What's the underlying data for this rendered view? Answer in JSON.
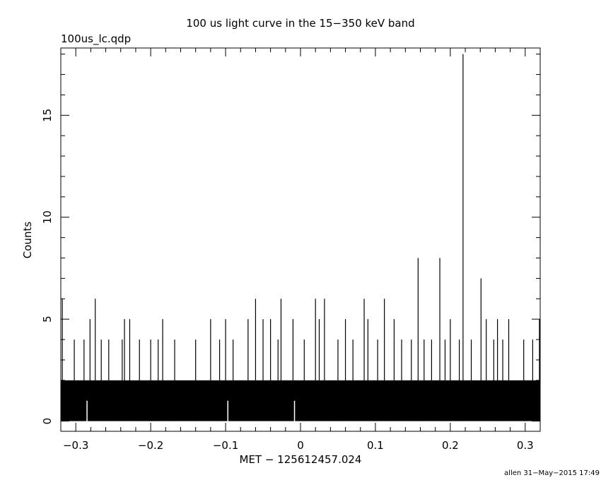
{
  "chart_data": {
    "type": "bar",
    "title": "100 us light curve in the 15−350 keV band",
    "file_label": "100us_lc.qdp",
    "xlabel": "MET − 125612457.024",
    "ylabel": "Counts",
    "footer": "allen 31−May−2015 17:49",
    "xlim": [
      -0.32,
      0.32
    ],
    "ylim": [
      -0.5,
      18.3
    ],
    "bin_width": 0.0001,
    "x_ticks": [
      {
        "value": -0.3,
        "label": "−0.3"
      },
      {
        "value": -0.2,
        "label": "−0.2"
      },
      {
        "value": -0.1,
        "label": "−0.1"
      },
      {
        "value": 0,
        "label": "0"
      },
      {
        "value": 0.1,
        "label": "0.1"
      },
      {
        "value": 0.2,
        "label": "0.2"
      },
      {
        "value": 0.3,
        "label": "0.3"
      }
    ],
    "y_ticks": [
      {
        "value": 0,
        "label": "0"
      },
      {
        "value": 5,
        "label": "5"
      },
      {
        "value": 10,
        "label": "10"
      },
      {
        "value": 15,
        "label": "15"
      }
    ],
    "baseline_level": 2,
    "peaks": [
      {
        "x": -0.318,
        "y": 6
      },
      {
        "x": -0.302,
        "y": 4
      },
      {
        "x": -0.289,
        "y": 4
      },
      {
        "x": -0.281,
        "y": 5
      },
      {
        "x": -0.274,
        "y": 6
      },
      {
        "x": -0.266,
        "y": 4
      },
      {
        "x": -0.256,
        "y": 4
      },
      {
        "x": -0.238,
        "y": 4
      },
      {
        "x": -0.235,
        "y": 5
      },
      {
        "x": -0.228,
        "y": 5
      },
      {
        "x": -0.215,
        "y": 4
      },
      {
        "x": -0.2,
        "y": 4
      },
      {
        "x": -0.19,
        "y": 4
      },
      {
        "x": -0.184,
        "y": 5
      },
      {
        "x": -0.168,
        "y": 4
      },
      {
        "x": -0.14,
        "y": 4
      },
      {
        "x": -0.12,
        "y": 5
      },
      {
        "x": -0.108,
        "y": 4
      },
      {
        "x": -0.1,
        "y": 5
      },
      {
        "x": -0.09,
        "y": 4
      },
      {
        "x": -0.07,
        "y": 5
      },
      {
        "x": -0.06,
        "y": 6
      },
      {
        "x": -0.05,
        "y": 5
      },
      {
        "x": -0.04,
        "y": 5
      },
      {
        "x": -0.03,
        "y": 4
      },
      {
        "x": -0.026,
        "y": 6
      },
      {
        "x": -0.01,
        "y": 5
      },
      {
        "x": 0.005,
        "y": 4
      },
      {
        "x": 0.02,
        "y": 6
      },
      {
        "x": 0.025,
        "y": 5
      },
      {
        "x": 0.032,
        "y": 6
      },
      {
        "x": 0.05,
        "y": 4
      },
      {
        "x": 0.06,
        "y": 5
      },
      {
        "x": 0.07,
        "y": 4
      },
      {
        "x": 0.085,
        "y": 6
      },
      {
        "x": 0.09,
        "y": 5
      },
      {
        "x": 0.103,
        "y": 4
      },
      {
        "x": 0.112,
        "y": 6
      },
      {
        "x": 0.125,
        "y": 5
      },
      {
        "x": 0.135,
        "y": 4
      },
      {
        "x": 0.148,
        "y": 4
      },
      {
        "x": 0.157,
        "y": 8
      },
      {
        "x": 0.165,
        "y": 4
      },
      {
        "x": 0.175,
        "y": 4
      },
      {
        "x": 0.186,
        "y": 8
      },
      {
        "x": 0.193,
        "y": 4
      },
      {
        "x": 0.2,
        "y": 5
      },
      {
        "x": 0.212,
        "y": 4
      },
      {
        "x": 0.217,
        "y": 18
      },
      {
        "x": 0.228,
        "y": 4
      },
      {
        "x": 0.241,
        "y": 7
      },
      {
        "x": 0.248,
        "y": 5
      },
      {
        "x": 0.258,
        "y": 4
      },
      {
        "x": 0.263,
        "y": 5
      },
      {
        "x": 0.27,
        "y": 4
      },
      {
        "x": 0.278,
        "y": 5
      },
      {
        "x": 0.298,
        "y": 4
      },
      {
        "x": 0.31,
        "y": 4
      },
      {
        "x": 0.319,
        "y": 5
      }
    ],
    "gaps": [
      {
        "x": -0.285,
        "y": 0
      },
      {
        "x": -0.097,
        "y": 0
      },
      {
        "x": -0.008,
        "y": 0
      }
    ],
    "grid": false,
    "legend": "none"
  }
}
